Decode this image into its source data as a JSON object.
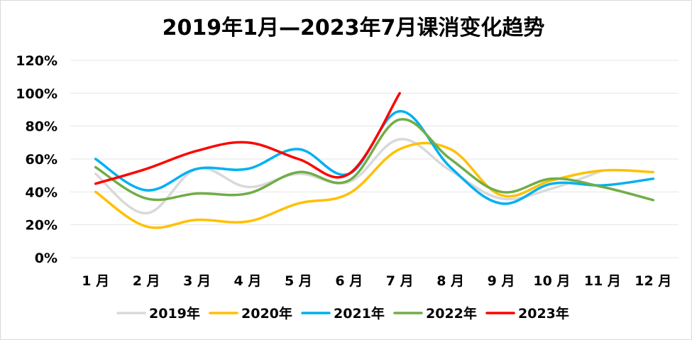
{
  "chart_data": {
    "type": "line",
    "title": "2019年1月—2023年7月课消变化趋势",
    "xlabel": "",
    "ylabel": "",
    "categories": [
      "1 月",
      "2 月",
      "3 月",
      "4 月",
      "5 月",
      "6 月",
      "7 月",
      "8 月",
      "9 月",
      "10 月",
      "11 月",
      "12 月"
    ],
    "yticks": [
      "0%",
      "20%",
      "40%",
      "60%",
      "80%",
      "100%",
      "120%"
    ],
    "ylim": [
      0,
      120
    ],
    "grid": true,
    "legend_position": "bottom",
    "series": [
      {
        "name": "2019年",
        "color": "#D9D9D9",
        "values": [
          51,
          27,
          54,
          43,
          51,
          46,
          72,
          53,
          36,
          42,
          53,
          null
        ]
      },
      {
        "name": "2020年",
        "color": "#FFC000",
        "values": [
          40,
          19,
          23,
          22,
          33,
          39,
          66,
          66,
          38,
          47,
          53,
          52
        ]
      },
      {
        "name": "2021年",
        "color": "#00B0F0",
        "values": [
          60,
          41,
          54,
          54,
          66,
          51,
          89,
          55,
          33,
          45,
          44,
          48
        ]
      },
      {
        "name": "2022年",
        "color": "#70AD47",
        "values": [
          55,
          36,
          39,
          39,
          52,
          47,
          84,
          60,
          40,
          48,
          43,
          35
        ]
      },
      {
        "name": "2023年",
        "color": "#FF0000",
        "values": [
          45,
          54,
          65,
          70,
          60,
          51,
          100,
          null,
          null,
          null,
          null,
          null
        ]
      }
    ]
  }
}
